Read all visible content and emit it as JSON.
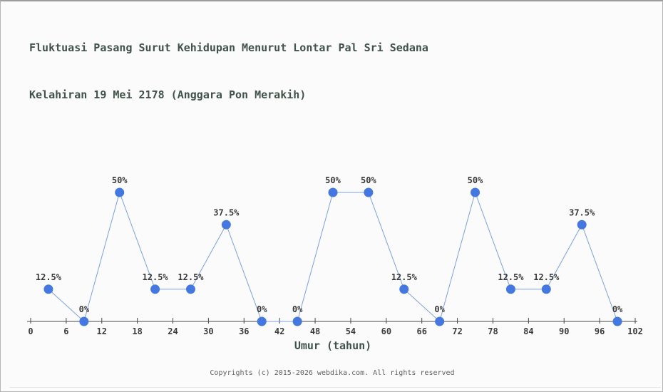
{
  "title": {
    "line1": "Fluktuasi Pasang Surut Kehidupan Menurut Lontar Pal Sri Sedana",
    "line2": "Kelahiran 19 Mei 2178 (Anggara Pon Merakih)",
    "color": "#41524a"
  },
  "chart_data": {
    "type": "line",
    "x": [
      3,
      9,
      15,
      21,
      27,
      33,
      39,
      45,
      51,
      57,
      63,
      69,
      75,
      81,
      87,
      93,
      99
    ],
    "values": [
      12.5,
      0,
      50,
      12.5,
      12.5,
      37.5,
      0,
      0,
      50,
      50,
      12.5,
      0,
      50,
      12.5,
      12.5,
      37.5,
      0
    ],
    "point_labels": [
      "12.5%",
      "0%",
      "50%",
      "12.5%",
      "12.5%",
      "37.5%",
      "0%",
      "0%",
      "50%",
      "50%",
      "12.5%",
      "0%",
      "50%",
      "12.5%",
      "12.5%",
      "37.5%",
      "0%"
    ],
    "x_ticks": [
      0,
      6,
      12,
      18,
      24,
      30,
      36,
      42,
      48,
      54,
      60,
      66,
      72,
      78,
      84,
      90,
      96,
      102
    ],
    "xlim": [
      0,
      102
    ],
    "ylim": [
      0,
      100
    ],
    "xlabel": "Umur (tahun)",
    "grid": false,
    "legend": "none",
    "line_color": "#7ba0e0",
    "marker_color": "#4478e0",
    "axis_color": "#474747",
    "tick_label_color": "#3b3b3b",
    "point_label_color": "#383838"
  },
  "footer": {
    "text": "Copyrights (c) 2015-2026 webdika.com. All rights reserved",
    "color": "#606060"
  },
  "window": {
    "background": "#fbfbfb",
    "border_color": "#b5b5b5"
  }
}
